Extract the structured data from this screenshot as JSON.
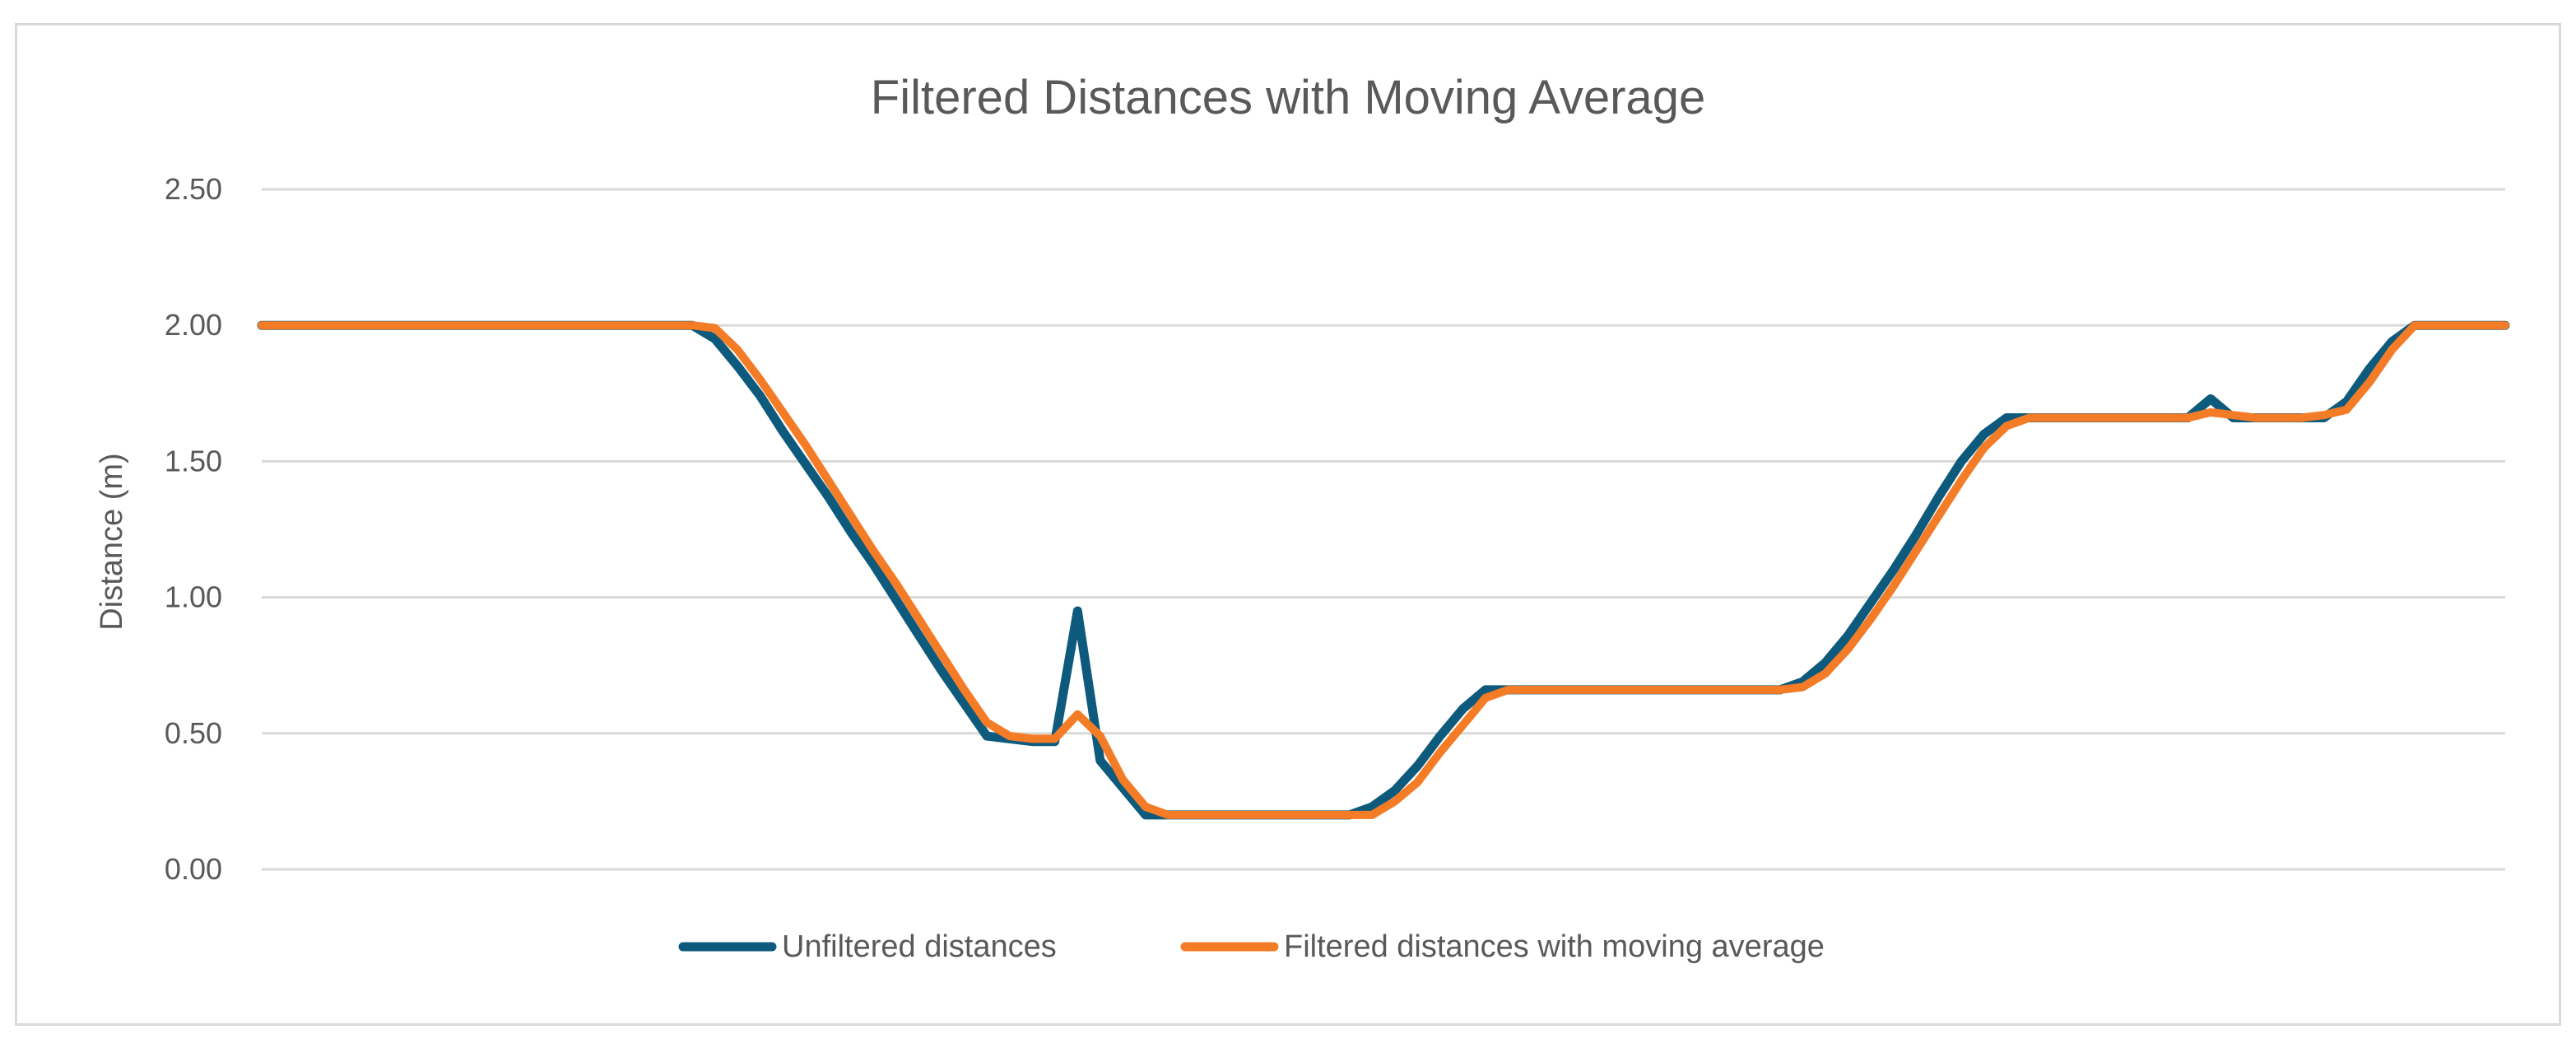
{
  "chart_data": {
    "type": "line",
    "title": "Filtered Distances with Moving Average",
    "xlabel": "",
    "ylabel": "Distance (m)",
    "ylim": [
      0,
      2.5
    ],
    "yticks": [
      "0.00",
      "0.50",
      "1.00",
      "1.50",
      "2.00",
      "2.50"
    ],
    "ytick_values": [
      0,
      0.5,
      1.0,
      1.5,
      2.0,
      2.5
    ],
    "x_count": 100,
    "grid": "horizontal",
    "legend_position": "bottom",
    "series": [
      {
        "name": "Unfiltered distances",
        "color": "#0e5a7c",
        "values": [
          2.0,
          2.0,
          2.0,
          2.0,
          2.0,
          2.0,
          2.0,
          2.0,
          2.0,
          2.0,
          2.0,
          2.0,
          2.0,
          2.0,
          2.0,
          2.0,
          2.0,
          2.0,
          2.0,
          2.0,
          1.95,
          1.85,
          1.74,
          1.61,
          1.49,
          1.37,
          1.24,
          1.12,
          0.99,
          0.86,
          0.73,
          0.61,
          0.49,
          0.48,
          0.47,
          0.47,
          0.95,
          0.4,
          0.3,
          0.2,
          0.2,
          0.2,
          0.2,
          0.2,
          0.2,
          0.2,
          0.2,
          0.2,
          0.2,
          0.23,
          0.29,
          0.38,
          0.49,
          0.59,
          0.66,
          0.66,
          0.66,
          0.66,
          0.66,
          0.66,
          0.66,
          0.66,
          0.66,
          0.66,
          0.66,
          0.66,
          0.66,
          0.66,
          0.69,
          0.76,
          0.86,
          0.98,
          1.1,
          1.23,
          1.37,
          1.5,
          1.6,
          1.66,
          1.66,
          1.66,
          1.66,
          1.66,
          1.66,
          1.66,
          1.66,
          1.66,
          1.73,
          1.66,
          1.66,
          1.66,
          1.66,
          1.66,
          1.72,
          1.84,
          1.94,
          2.0,
          2.0,
          2.0,
          2.0,
          2.0
        ]
      },
      {
        "name": "Filtered distances with moving average",
        "color": "#f47c26",
        "values": [
          2.0,
          2.0,
          2.0,
          2.0,
          2.0,
          2.0,
          2.0,
          2.0,
          2.0,
          2.0,
          2.0,
          2.0,
          2.0,
          2.0,
          2.0,
          2.0,
          2.0,
          2.0,
          2.0,
          2.0,
          1.99,
          1.91,
          1.8,
          1.68,
          1.56,
          1.43,
          1.3,
          1.17,
          1.05,
          0.92,
          0.79,
          0.66,
          0.54,
          0.49,
          0.48,
          0.48,
          0.57,
          0.49,
          0.33,
          0.23,
          0.2,
          0.2,
          0.2,
          0.2,
          0.2,
          0.2,
          0.2,
          0.2,
          0.2,
          0.2,
          0.25,
          0.32,
          0.43,
          0.53,
          0.63,
          0.66,
          0.66,
          0.66,
          0.66,
          0.66,
          0.66,
          0.66,
          0.66,
          0.66,
          0.66,
          0.66,
          0.66,
          0.66,
          0.67,
          0.72,
          0.81,
          0.92,
          1.04,
          1.17,
          1.3,
          1.43,
          1.55,
          1.63,
          1.66,
          1.66,
          1.66,
          1.66,
          1.66,
          1.66,
          1.66,
          1.66,
          1.68,
          1.67,
          1.66,
          1.66,
          1.66,
          1.67,
          1.69,
          1.79,
          1.91,
          2.0,
          2.0,
          2.0,
          2.0,
          2.0
        ]
      }
    ]
  }
}
